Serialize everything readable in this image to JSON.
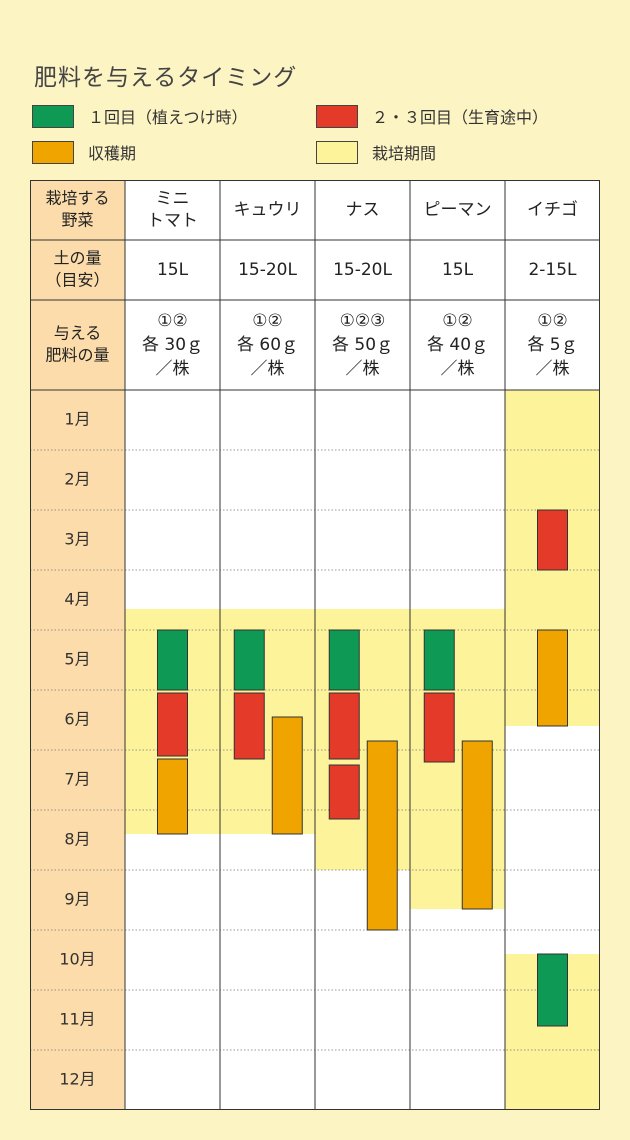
{
  "title": "肥料を与えるタイミング",
  "legend": [
    {
      "label": "１回目（植えつけ時）",
      "color": "#0e9a55"
    },
    {
      "label": "２・３回目（生育途中）",
      "color": "#e33a2a"
    },
    {
      "label": "収穫期",
      "color": "#f0a400"
    },
    {
      "label": "栽培期間",
      "color": "#fdf39b"
    }
  ],
  "colors": {
    "background": "#fdf4c4",
    "header": "#fbdcaa",
    "first_fert": "#0e9a55",
    "second_fert": "#e33a2a",
    "harvest": "#f0a400",
    "period": "#fdf39b",
    "border": "#333333"
  },
  "table": {
    "row_headers": {
      "crop": [
        "栽培する",
        "野菜"
      ],
      "soil": [
        "土の量",
        "（目安）"
      ],
      "fertilizer": [
        "与える",
        "肥料の量"
      ]
    }
  },
  "chart_data": {
    "type": "table",
    "months": [
      "1月",
      "2月",
      "3月",
      "4月",
      "5月",
      "6月",
      "7月",
      "8月",
      "9月",
      "10月",
      "11月",
      "12月"
    ],
    "crops": [
      {
        "name": [
          "ミニ",
          "トマト"
        ],
        "soil": "15L",
        "fertilizer": [
          "①②",
          "各 30ｇ",
          "／株"
        ],
        "period": [
          [
            4.65,
            8.4
          ]
        ],
        "first": [
          [
            5.0,
            6.0
          ]
        ],
        "second": [
          [
            6.05,
            7.1
          ]
        ],
        "harvest": [
          [
            7.15,
            8.4
          ]
        ]
      },
      {
        "name": [
          "キュウリ"
        ],
        "soil": "15-20L",
        "fertilizer": [
          "①②",
          "各 60ｇ",
          "／株"
        ],
        "period": [
          [
            4.65,
            8.4
          ]
        ],
        "first": [
          [
            5.0,
            6.0
          ]
        ],
        "second": [
          [
            6.05,
            7.15
          ]
        ],
        "harvest": [
          [
            6.45,
            8.4
          ]
        ]
      },
      {
        "name": [
          "ナス"
        ],
        "soil": "15-20L",
        "fertilizer": [
          "①②③",
          "各 50ｇ",
          "／株"
        ],
        "period": [
          [
            4.65,
            9.0
          ]
        ],
        "first": [
          [
            5.0,
            6.0
          ]
        ],
        "second": [
          [
            6.05,
            7.15
          ],
          [
            7.25,
            8.15
          ]
        ],
        "harvest": [
          [
            6.85,
            10.0
          ]
        ]
      },
      {
        "name": [
          "ピーマン"
        ],
        "soil": "15L",
        "fertilizer": [
          "①②",
          "各 40ｇ",
          "／株"
        ],
        "period": [
          [
            4.65,
            9.65
          ]
        ],
        "first": [
          [
            5.0,
            6.0
          ]
        ],
        "second": [
          [
            6.05,
            7.2
          ]
        ],
        "harvest": [
          [
            6.85,
            9.65
          ]
        ]
      },
      {
        "name": [
          "イチゴ"
        ],
        "soil": "2-15L",
        "fertilizer": [
          "①②",
          "各 5ｇ",
          "／株"
        ],
        "period": [
          [
            1.0,
            6.6
          ],
          [
            10.4,
            13.0
          ]
        ],
        "first": [
          [
            10.4,
            11.6
          ]
        ],
        "second": [
          [
            3.0,
            4.0
          ]
        ],
        "harvest": [
          [
            5.0,
            6.6
          ]
        ]
      }
    ]
  }
}
